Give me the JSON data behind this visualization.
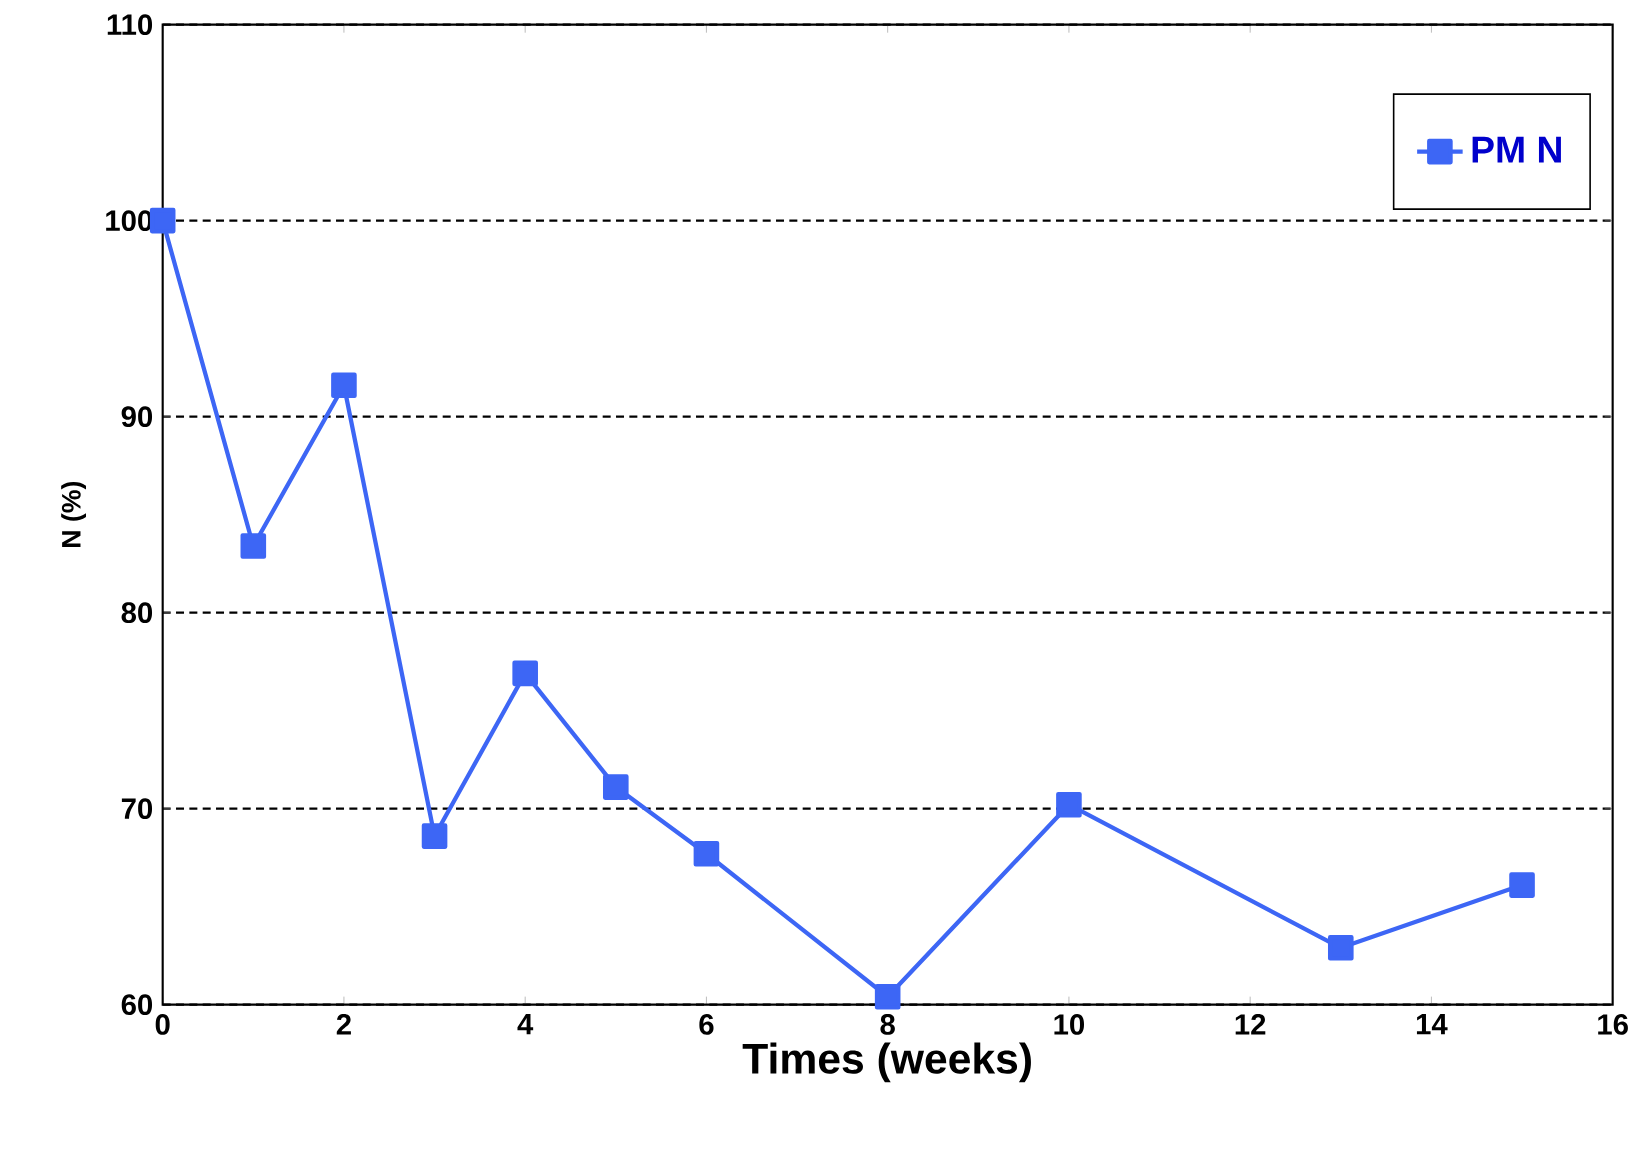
{
  "chart_data": {
    "type": "line",
    "xlabel": "Times (weeks)",
    "ylabel": "N (%)",
    "x": [
      0,
      1,
      2,
      3,
      4,
      5,
      6,
      8,
      10,
      13,
      15
    ],
    "series": [
      {
        "name": "PM N",
        "color": "#3d66f5",
        "values": [
          100,
          83.4,
          91.6,
          68.6,
          76.9,
          71.1,
          67.7,
          60.4,
          70.2,
          62.9,
          66.1
        ]
      }
    ],
    "xlim": [
      0,
      16
    ],
    "xticks": [
      0,
      2,
      4,
      6,
      8,
      10,
      12,
      14,
      16
    ],
    "ylim": [
      60,
      110
    ],
    "yticks": [
      60,
      70,
      80,
      90,
      100,
      110
    ],
    "grid": "y",
    "legend": "top right",
    "marker": "square",
    "line_style": "solid"
  }
}
